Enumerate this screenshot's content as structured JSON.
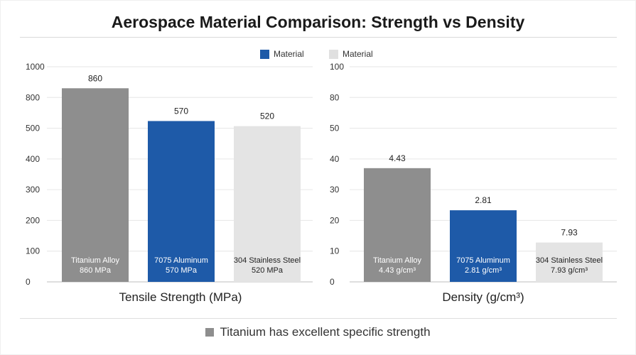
{
  "title": "Aerospace Material Comparison: Strength vs Density",
  "legend": {
    "items": [
      {
        "label": "Material",
        "color": "#1e5aa8"
      },
      {
        "label": "Material",
        "color": "#e0e0e0"
      }
    ]
  },
  "footer": {
    "note": "Titanium has excellent specific strength",
    "swatch_color": "#8e8e8e"
  },
  "colors": {
    "titanium": "#8e8e8e",
    "aluminum": "#1e5aa8",
    "steel": "#e4e4e4"
  },
  "chart_data": [
    {
      "type": "bar",
      "title": "",
      "xlabel": "Tensile Strength (MPa)",
      "ylabel": "",
      "ylim": [
        0,
        1000
      ],
      "yticks": [
        "0",
        "100",
        "200",
        "300",
        "400",
        "500",
        "800",
        "1000"
      ],
      "categories": [
        "Titanium Alloy",
        "7075 Aluminum",
        "304 Stainless Steel"
      ],
      "values": [
        860,
        570,
        520
      ],
      "value_labels": [
        "860",
        "570",
        "520"
      ],
      "bar_labels": [
        [
          "Titanium Alloy",
          "860 MPa"
        ],
        [
          "7075 Aluminum",
          "570 MPa"
        ],
        [
          "304 Stainless Steel",
          "520 MPa"
        ]
      ],
      "grid": true
    },
    {
      "type": "bar",
      "title": "",
      "xlabel": "Density (g/cm³)",
      "ylabel": "",
      "ylim": [
        0,
        100
      ],
      "yticks": [
        "0",
        "10",
        "20",
        "30",
        "40",
        "50",
        "80",
        "100"
      ],
      "categories": [
        "Titanium Alloy",
        "7075 Aluminum",
        "304 Stainless Steel"
      ],
      "values": [
        4.43,
        2.81,
        7.93
      ],
      "value_labels": [
        "4.43",
        "2.81",
        "7.93"
      ],
      "bar_labels": [
        [
          "Titanium Alloy",
          "4.43 g/cm³"
        ],
        [
          "7075 Aluminum",
          "2.81 g/cm³"
        ],
        [
          "304 Stainless Steel",
          "7.93 g/cm³"
        ]
      ],
      "grid": true
    }
  ]
}
